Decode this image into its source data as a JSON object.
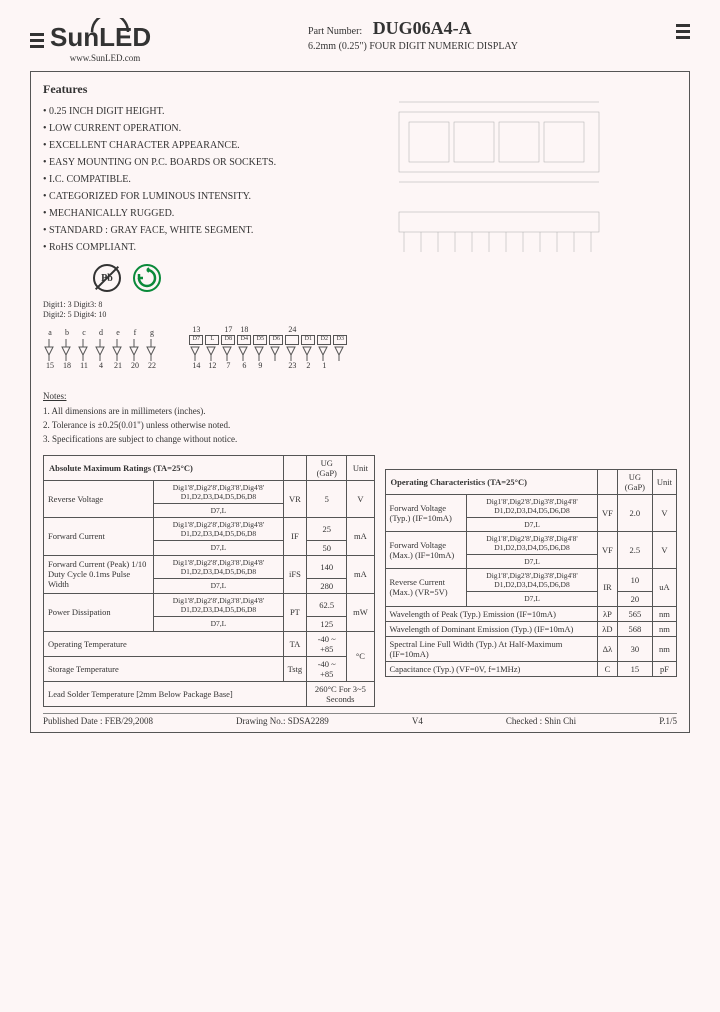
{
  "header": {
    "brand": "SunLED",
    "url": "www.SunLED.com",
    "part_label": "Part Number:",
    "part_number": "DUG06A4-A",
    "subtitle": "6.2mm (0.25\") FOUR DIGIT NUMERIC DISPLAY"
  },
  "features": {
    "title": "Features",
    "items": [
      "0.25 INCH DIGIT HEIGHT.",
      "LOW CURRENT OPERATION.",
      "EXCELLENT CHARACTER APPEARANCE.",
      "EASY MOUNTING ON P.C. BOARDS OR SOCKETS.",
      "I.C. COMPATIBLE.",
      "CATEGORIZED FOR LUMINOUS INTENSITY.",
      "MECHANICALLY RUGGED.",
      "STANDARD : GRAY FACE, WHITE SEGMENT.",
      "RoHS COMPLIANT."
    ],
    "pb_icon": "Pb"
  },
  "pins": {
    "digit_map1": "Digit1: 3  Digit3: 8",
    "digit_map2": "Digit2: 5  Digit4: 10",
    "seg_labels": [
      "a",
      "b",
      "c",
      "d",
      "e",
      "f",
      "g"
    ],
    "seg_pins": [
      "15",
      "18",
      "11",
      "4",
      "21",
      "20",
      "22"
    ],
    "side_labels": [
      "13",
      "",
      "17",
      "18",
      "",
      "",
      "24"
    ],
    "side_top": [
      "D7",
      "L",
      "D8",
      "D4",
      "D5",
      "D6",
      "",
      "D1",
      "D2",
      "D3"
    ],
    "side_bot": [
      "14",
      "12",
      "7",
      "6",
      "9",
      "",
      "23",
      "2",
      "1"
    ]
  },
  "notes": {
    "title": "Notes:",
    "items": [
      "1. All dimensions are in millimeters (inches).",
      "2. Tolerance is ±0.25(0.01\") unless otherwise noted.",
      "3. Specifications are subject to change without notice."
    ]
  },
  "amr": {
    "header": "Absolute Maximum Ratings (TA=25°C)",
    "col_ug": "UG (GaP)",
    "col_unit": "Unit",
    "rows": [
      {
        "param": "Reverse Voltage",
        "sub1": "Dig1'8',Dig2'8',Dig3'8',Dig4'8' D1,D2,D3,D4,D5,D6,D8",
        "sub2": "D7,L",
        "sym": "VR",
        "v1": "5",
        "v2": "",
        "unit": "V"
      },
      {
        "param": "Forward Current",
        "sub1": "Dig1'8',Dig2'8',Dig3'8',Dig4'8' D1,D2,D3,D4,D5,D6,D8",
        "sub2": "D7,L",
        "sym": "IF",
        "v1": "25",
        "v2": "50",
        "unit": "mA"
      },
      {
        "param": "Forward Current (Peak) 1/10 Duty Cycle 0.1ms Pulse Width",
        "sub1": "Dig1'8',Dig2'8',Dig3'8',Dig4'8' D1,D2,D3,D4,D5,D6,D8",
        "sub2": "D7,L",
        "sym": "iFS",
        "v1": "140",
        "v2": "280",
        "unit": "mA"
      },
      {
        "param": "Power Dissipation",
        "sub1": "Dig1'8',Dig2'8',Dig3'8',Dig4'8' D1,D2,D3,D4,D5,D6,D8",
        "sub2": "D7,L",
        "sym": "PT",
        "v1": "62.5",
        "v2": "125",
        "unit": "mW"
      }
    ],
    "op_temp": {
      "param": "Operating Temperature",
      "sym": "TA",
      "val": "-40 ~ +85",
      "unit": "°C"
    },
    "st_temp": {
      "param": "Storage Temperature",
      "sym": "Tstg",
      "val": "-40 ~ +85"
    },
    "solder": {
      "param": "Lead Solder Temperature [2mm Below Package Base]",
      "val": "260°C For 3~5 Seconds"
    }
  },
  "oc": {
    "header": "Operating Characteristics (TA=25°C)",
    "col_ug": "UG (GaP)",
    "col_unit": "Unit",
    "rows2": [
      {
        "param": "Forward Voltage (Typ.) (IF=10mA)",
        "sub1": "Dig1'8',Dig2'8',Dig3'8',Dig4'8' D1,D2,D3,D4,D5,D6,D8",
        "sub2": "D7,L",
        "sym": "VF",
        "v1": "2.0",
        "v2": "",
        "unit": "V"
      },
      {
        "param": "Forward Voltage (Max.) (IF=10mA)",
        "sub1": "Dig1'8',Dig2'8',Dig3'8',Dig4'8' D1,D2,D3,D4,D5,D6,D8",
        "sub2": "D7,L",
        "sym": "VF",
        "v1": "2.5",
        "v2": "",
        "unit": "V"
      },
      {
        "param": "Reverse Current (Max.) (VR=5V)",
        "sub1": "Dig1'8',Dig2'8',Dig3'8',Dig4'8' D1,D2,D3,D4,D5,D6,D8",
        "sub2": "D7,L",
        "sym": "IR",
        "v1": "10",
        "v2": "20",
        "unit": "uA"
      }
    ],
    "rows1": [
      {
        "param": "Wavelength of Peak (Typ.) Emission (IF=10mA)",
        "sym": "λP",
        "val": "565",
        "unit": "nm"
      },
      {
        "param": "Wavelength of Dominant Emission (Typ.) (IF=10mA)",
        "sym": "λD",
        "val": "568",
        "unit": "nm"
      },
      {
        "param": "Spectral Line Full Width (Typ.) At Half-Maximum (IF=10mA)",
        "sym": "Δλ",
        "val": "30",
        "unit": "nm"
      },
      {
        "param": "Capacitance (Typ.) (VF=0V, f=1MHz)",
        "sym": "C",
        "val": "15",
        "unit": "pF"
      }
    ]
  },
  "footer": {
    "date": "Published Date : FEB/29,2008",
    "drawing": "Drawing No.: SDSA2289",
    "ver": "V4",
    "checked": "Checked : Shin Chi",
    "page": "P.1/5"
  }
}
